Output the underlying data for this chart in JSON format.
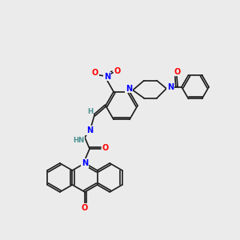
{
  "background_color": "#ebebeb",
  "bond_color": "#1a1a1a",
  "atom_colors": {
    "N": "#0000ff",
    "O": "#ff0000",
    "H": "#4a9090",
    "C": "#1a1a1a"
  },
  "figsize": [
    3.0,
    3.0
  ],
  "dpi": 100,
  "scale": 1.0
}
